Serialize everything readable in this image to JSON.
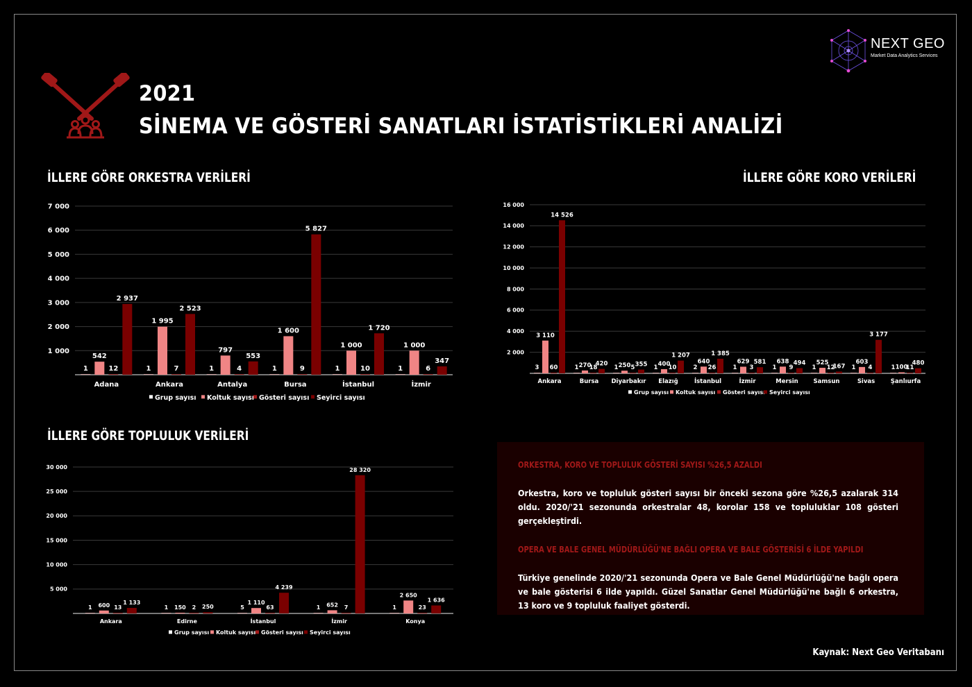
{
  "page": {
    "year": "2021",
    "title": "SİNEMA VE GÖSTERİ SANATLARI İSTATİSTİKLERİ ANALİZİ",
    "source": "Kaynak: Next Geo Veritabanı"
  },
  "brand": {
    "name": "NEXT GEO",
    "tagline": "Market Data Analytics Services"
  },
  "colors": {
    "grup": "#f2b8b8",
    "koltuk": "#f08585",
    "gosteri": "#a31a1a",
    "seyirci": "#7a0000",
    "accent": "#a01818"
  },
  "charts": {
    "orkestra_title": "İLLERE GÖRE ORKESTRA VERİLERİ",
    "koro_title": "İLLERE GÖRE KORO VERİLERİ",
    "topluluk_title": "İLLERE GÖRE TOPLULUK VERİLERİ"
  },
  "info": {
    "heading1": "ORKESTRA, KORO VE TOPLULUK GÖSTERİ SAYISI %26,5 AZALDI",
    "text1": "Orkestra, koro ve topluluk gösteri sayısı bir önceki sezona göre %26,5 azalarak 314 oldu. 2020/'21 sezonunda orkestralar 48, korolar 158 ve topluluklar 108 gösteri gerçekleştirdi.",
    "heading2": "OPERA VE BALE GENEL MÜDÜRLÜĞÜ'NE BAĞLI OPERA VE BALE GÖSTERİSİ 6 İLDE YAPILDI",
    "text2": "Türkiye genelinde 2020/'21 sezonunda Opera ve Bale Genel Müdürlüğü'ne bağlı opera ve bale gösterisi 6 ilde yapıldı. Güzel Sanatlar Genel Müdürlüğü'ne bağlı 6 orkestra, 13 koro ve 9 topluluk faaliyet gösterdi."
  },
  "chart_data": [
    {
      "id": "orkestra",
      "type": "bar",
      "title": "İLLERE GÖRE ORKESTRA VERİLERİ",
      "categories": [
        "Adana",
        "Ankara",
        "Antalya",
        "Bursa",
        "İstanbul",
        "İzmir"
      ],
      "series": [
        {
          "name": "Grup sayısı",
          "values": [
            1,
            1,
            1,
            1,
            1,
            1
          ]
        },
        {
          "name": "Koltuk sayısı",
          "values": [
            542,
            1995,
            797,
            1600,
            1000,
            1000
          ]
        },
        {
          "name": "Gösteri sayısı",
          "values": [
            12,
            7,
            4,
            9,
            10,
            6
          ]
        },
        {
          "name": "Seyirci sayısı",
          "values": [
            2937,
            2523,
            553,
            5827,
            1720,
            347
          ]
        }
      ],
      "ylim": [
        0,
        7000
      ],
      "yticks": [
        1000,
        2000,
        3000,
        4000,
        5000,
        6000,
        7000
      ],
      "ytick_labels": [
        "1 000",
        "2 000",
        "3 000",
        "4 000",
        "5 000",
        "6 000",
        "7 000"
      ],
      "grid": true,
      "legend": "bottom"
    },
    {
      "id": "koro",
      "type": "bar",
      "title": "İLLERE GÖRE KORO VERİLERİ",
      "categories": [
        "Ankara",
        "Bursa",
        "Diyarbakır",
        "Elazığ",
        "İstanbul",
        "İzmir",
        "Mersin",
        "Samsun",
        "Sivas",
        "Şanlıurfa"
      ],
      "series": [
        {
          "name": "Grup sayısı",
          "values": [
            3,
            1,
            1,
            1,
            2,
            1,
            1,
            1,
            1,
            1
          ]
        },
        {
          "name": "Koltuk sayısı",
          "values": [
            3110,
            270,
            250,
            400,
            640,
            629,
            638,
            525,
            603,
            100
          ]
        },
        {
          "name": "Gösteri sayısı",
          "values": [
            60,
            18,
            5,
            10,
            26,
            3,
            9,
            12,
            4,
            11
          ]
        },
        {
          "name": "Seyirci sayısı",
          "values": [
            14526,
            420,
            355,
            1207,
            1385,
            581,
            494,
            167,
            3177,
            480
          ]
        }
      ],
      "ylim": [
        0,
        16000
      ],
      "yticks": [
        2000,
        4000,
        6000,
        8000,
        10000,
        12000,
        14000,
        16000
      ],
      "ytick_labels": [
        "2 000",
        "4 000",
        "6 000",
        "8 000",
        "10 000",
        "12 000",
        "14 000",
        "16 000"
      ],
      "grid": true,
      "legend": "bottom"
    },
    {
      "id": "topluluk",
      "type": "bar",
      "title": "İLLERE GÖRE TOPLULUK VERİLERİ",
      "categories": [
        "Ankara",
        "Edirne",
        "İstanbul",
        "İzmir",
        "Konya"
      ],
      "series": [
        {
          "name": "Grup sayısı",
          "values": [
            1,
            1,
            5,
            1,
            1
          ]
        },
        {
          "name": "Koltuk sayısı",
          "values": [
            600,
            150,
            1110,
            652,
            2650
          ]
        },
        {
          "name": "Gösteri sayısı",
          "values": [
            13,
            2,
            63,
            7,
            23
          ]
        },
        {
          "name": "Seyirci sayısı",
          "values": [
            1133,
            250,
            4239,
            28320,
            1636
          ]
        }
      ],
      "ylim": [
        0,
        30000
      ],
      "yticks": [
        5000,
        10000,
        15000,
        20000,
        25000,
        30000
      ],
      "ytick_labels": [
        "5 000",
        "10 000",
        "15 000",
        "20 000",
        "25 000",
        "30 000"
      ],
      "grid": true,
      "legend": "bottom"
    }
  ]
}
